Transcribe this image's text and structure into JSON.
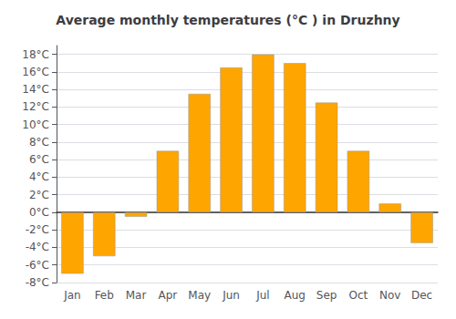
{
  "chart_data": {
    "type": "bar",
    "title": "Average monthly temperatures (°C ) in Druzhny",
    "categories": [
      "Jan",
      "Feb",
      "Mar",
      "Apr",
      "May",
      "Jun",
      "Jul",
      "Aug",
      "Sep",
      "Oct",
      "Nov",
      "Dec"
    ],
    "values": [
      -7.0,
      -5.0,
      -0.5,
      7.0,
      13.5,
      16.5,
      18.0,
      17.0,
      12.5,
      7.0,
      1.0,
      -3.5
    ],
    "color": "#FFA500",
    "ylim": [
      -8,
      19
    ],
    "yticks": [
      {
        "value": -8,
        "label": "-8°C"
      },
      {
        "value": -6,
        "label": "-6°C"
      },
      {
        "value": -4,
        "label": "-4°C"
      },
      {
        "value": -2,
        "label": "-2°C"
      },
      {
        "value": 0,
        "label": "0°C"
      },
      {
        "value": 2,
        "label": "2°C"
      },
      {
        "value": 4,
        "label": "4°C"
      },
      {
        "value": 6,
        "label": "6°C"
      },
      {
        "value": 8,
        "label": "8°C"
      },
      {
        "value": 10,
        "label": "10°C"
      },
      {
        "value": 12,
        "label": "12°C"
      },
      {
        "value": 14,
        "label": "14°C"
      },
      {
        "value": 16,
        "label": "16°C"
      },
      {
        "value": 18,
        "label": "18°C"
      }
    ],
    "grid": true
  }
}
